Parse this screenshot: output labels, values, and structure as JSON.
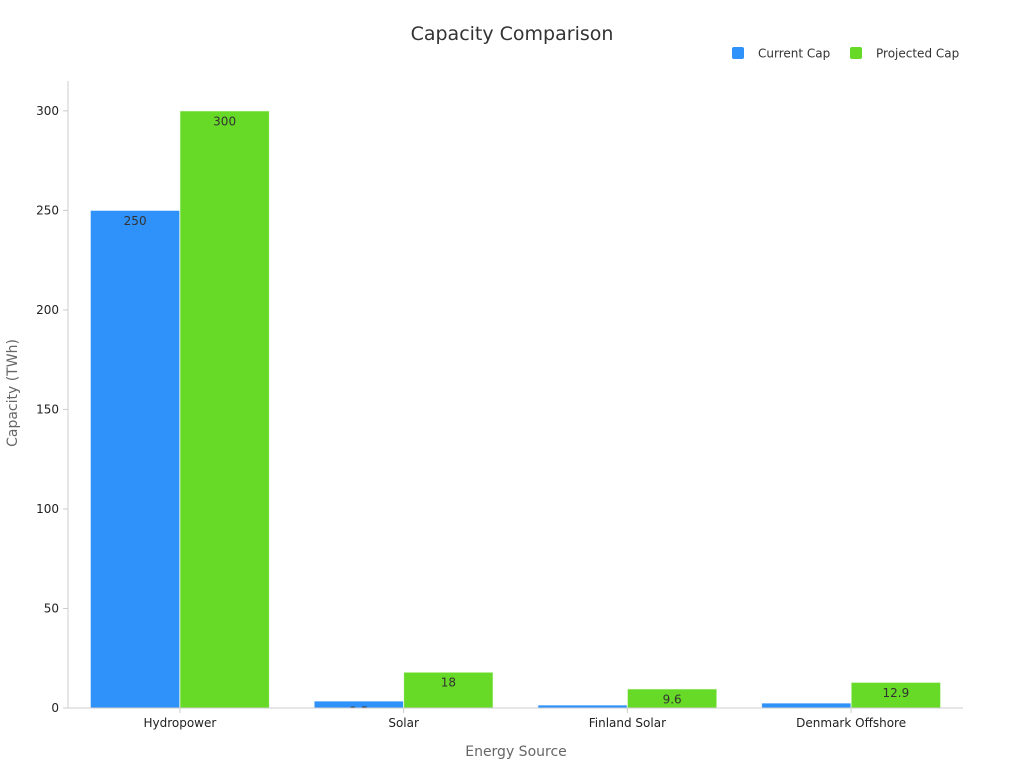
{
  "chart_data": {
    "type": "bar",
    "title": "Capacity Comparison",
    "xlabel": "Energy Source",
    "ylabel": "Capacity (TWh)",
    "categories": [
      "Hydropower",
      "Solar",
      "Finland Solar",
      "Denmark Offshore"
    ],
    "series": [
      {
        "name": "Current Cap",
        "color": "#2F91FA",
        "values": [
          250,
          3.5,
          1.5,
          2.5
        ]
      },
      {
        "name": "Projected Cap",
        "color": "#66DA26",
        "values": [
          300,
          18,
          9.6,
          12.9
        ]
      }
    ],
    "ylim": [
      0,
      315
    ],
    "yticks": [
      0,
      50,
      100,
      150,
      200,
      250,
      300
    ],
    "grid": false,
    "legend_position": "top-right"
  }
}
